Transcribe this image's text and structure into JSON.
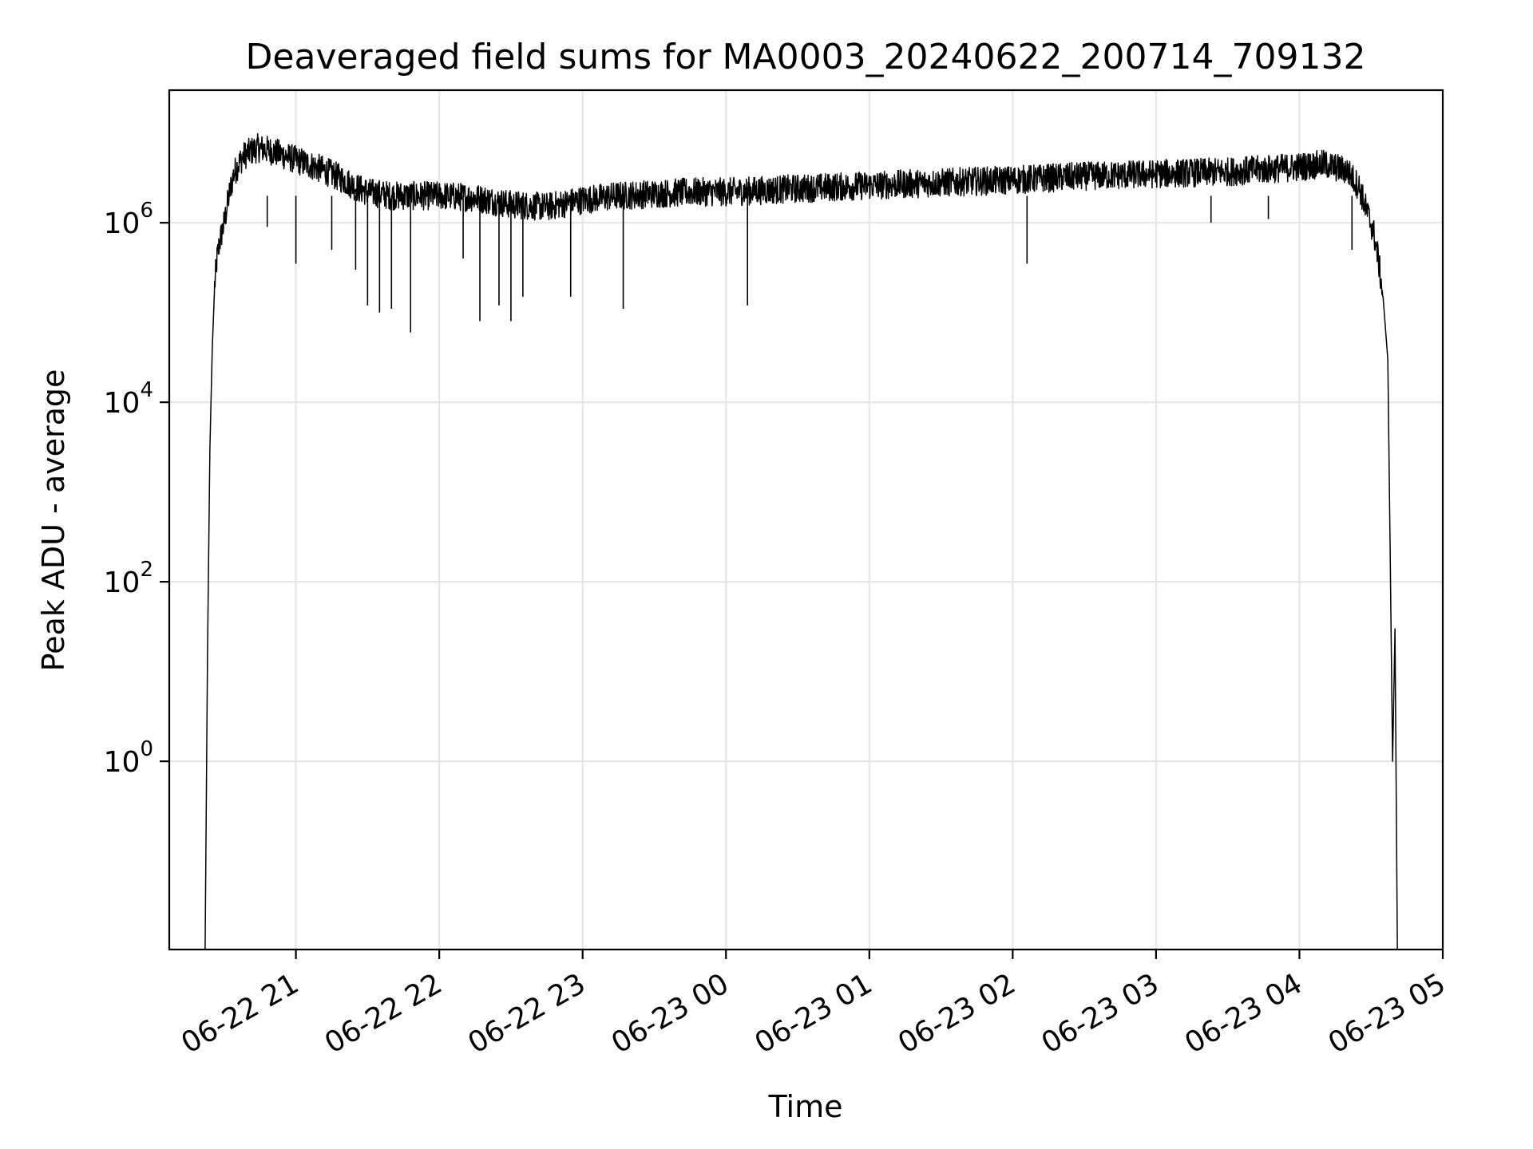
{
  "chart_data": {
    "type": "line",
    "title": "Deaveraged field sums for MA0003_20240622_200714_709132",
    "xlabel": "Time",
    "ylabel": "Peak ADU - average",
    "yscale": "log",
    "xlim": [
      "2024-06-22 20:07",
      "2024-06-23 05:00"
    ],
    "ylim": [
      0.008,
      30000000
    ],
    "grid": true,
    "line_color": "#000000",
    "x_ticks": [
      "06-22 21",
      "06-22 22",
      "06-22 23",
      "06-23 00",
      "06-23 01",
      "06-23 02",
      "06-23 03",
      "06-23 04",
      "06-23 05"
    ],
    "y_ticks": [
      {
        "value": 1,
        "base": "10",
        "exp": "0"
      },
      {
        "value": 100,
        "base": "10",
        "exp": "2"
      },
      {
        "value": 10000,
        "base": "10",
        "exp": "4"
      },
      {
        "value": 1000000,
        "base": "10",
        "exp": "6"
      }
    ],
    "series": [
      {
        "x": [
          "2024-06-22 20:22",
          "2024-06-22 20:23",
          "2024-06-22 20:24",
          "2024-06-22 20:25",
          "2024-06-22 20:26",
          "2024-06-22 20:27",
          "2024-06-22 20:28",
          "2024-06-22 20:30",
          "2024-06-22 20:32",
          "2024-06-22 20:34",
          "2024-06-22 20:36",
          "2024-06-22 20:38",
          "2024-06-22 20:40",
          "2024-06-22 20:44",
          "2024-06-22 20:48",
          "2024-06-22 20:52",
          "2024-06-22 20:56",
          "2024-06-22 21:00",
          "2024-06-22 21:05",
          "2024-06-22 21:10",
          "2024-06-22 21:15",
          "2024-06-22 21:20",
          "2024-06-22 21:25",
          "2024-06-22 21:30",
          "2024-06-22 21:40",
          "2024-06-22 21:50",
          "2024-06-22 22:00",
          "2024-06-22 22:15",
          "2024-06-22 22:30",
          "2024-06-22 22:45",
          "2024-06-22 23:00",
          "2024-06-22 23:15",
          "2024-06-22 23:30",
          "2024-06-22 23:45",
          "2024-06-23 00:00",
          "2024-06-23 00:30",
          "2024-06-23 01:00",
          "2024-06-23 01:30",
          "2024-06-23 02:00",
          "2024-06-23 02:30",
          "2024-06-23 03:00",
          "2024-06-23 03:30",
          "2024-06-23 03:50",
          "2024-06-23 04:00",
          "2024-06-23 04:10",
          "2024-06-23 04:20",
          "2024-06-23 04:25",
          "2024-06-23 04:28",
          "2024-06-23 04:31",
          "2024-06-23 04:33",
          "2024-06-23 04:35",
          "2024-06-23 04:37",
          "2024-06-23 04:38",
          "2024-06-23 04:39",
          "2024-06-23 04:40",
          "2024-06-23 04:41"
        ],
        "y": [
          0.008,
          15,
          3000,
          40000,
          200000,
          400000,
          600000,
          1000000,
          2000000,
          3500000,
          4500000,
          5500000,
          6000000,
          6800000,
          6500000,
          6000000,
          5500000,
          5000000,
          4500000,
          4000000,
          3500000,
          3000000,
          2500000,
          2200000,
          2000000,
          2000000,
          2000000,
          1900000,
          1600000,
          1500000,
          1800000,
          2000000,
          2100000,
          2200000,
          2200000,
          2400000,
          2600000,
          2800000,
          3000000,
          3300000,
          3500000,
          3700000,
          4000000,
          4200000,
          4500000,
          3800000,
          2500000,
          1400000,
          800000,
          400000,
          150000,
          30000,
          200,
          1,
          30,
          0.008
        ]
      }
    ],
    "spikes": [
      {
        "x": "2024-06-22 20:48",
        "y": 900000
      },
      {
        "x": "2024-06-22 21:00",
        "y": 350000
      },
      {
        "x": "2024-06-22 21:15",
        "y": 500000
      },
      {
        "x": "2024-06-22 21:25",
        "y": 300000
      },
      {
        "x": "2024-06-22 21:30",
        "y": 120000
      },
      {
        "x": "2024-06-22 21:35",
        "y": 100000
      },
      {
        "x": "2024-06-22 21:40",
        "y": 110000
      },
      {
        "x": "2024-06-22 21:48",
        "y": 60000
      },
      {
        "x": "2024-06-22 22:10",
        "y": 400000
      },
      {
        "x": "2024-06-22 22:17",
        "y": 80000
      },
      {
        "x": "2024-06-22 22:25",
        "y": 120000
      },
      {
        "x": "2024-06-22 22:30",
        "y": 80000
      },
      {
        "x": "2024-06-22 22:35",
        "y": 150000
      },
      {
        "x": "2024-06-22 22:55",
        "y": 150000
      },
      {
        "x": "2024-06-22 23:17",
        "y": 110000
      },
      {
        "x": "2024-06-23 00:09",
        "y": 120000
      },
      {
        "x": "2024-06-23 02:06",
        "y": 350000
      },
      {
        "x": "2024-06-23 03:23",
        "y": 1000000
      },
      {
        "x": "2024-06-23 03:47",
        "y": 1100000
      },
      {
        "x": "2024-06-23 04:22",
        "y": 500000
      }
    ]
  }
}
